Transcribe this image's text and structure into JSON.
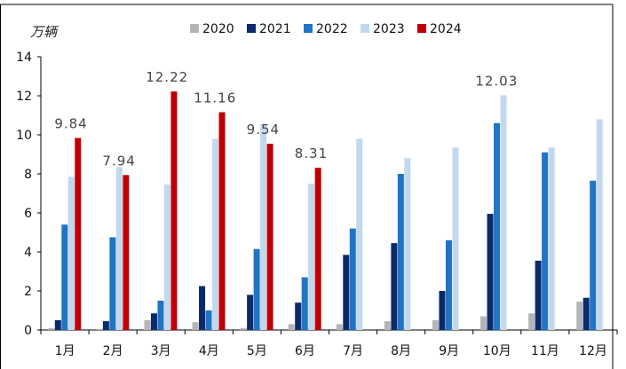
{
  "chart_data": {
    "type": "bar",
    "unit_label": "万辆",
    "categories": [
      "1月",
      "2月",
      "3月",
      "4月",
      "5月",
      "6月",
      "7月",
      "8月",
      "9月",
      "10月",
      "11月",
      "12月"
    ],
    "ylim": [
      0,
      14
    ],
    "yticks": [
      0,
      2,
      4,
      6,
      8,
      10,
      12,
      14
    ],
    "legend_position": "top",
    "grid": false,
    "series": [
      {
        "name": "2020",
        "color": "#b5b5b5",
        "values": [
          0.1,
          0.05,
          0.5,
          0.4,
          0.1,
          0.3,
          0.3,
          0.45,
          0.5,
          0.7,
          0.85,
          1.45
        ]
      },
      {
        "name": "2021",
        "color": "#0b2a6b",
        "values": [
          0.5,
          0.45,
          0.85,
          2.25,
          1.8,
          1.4,
          3.85,
          4.45,
          2.0,
          5.95,
          3.55,
          1.65
        ]
      },
      {
        "name": "2022",
        "color": "#1f74c7",
        "values": [
          5.4,
          4.75,
          1.5,
          1.0,
          4.15,
          2.7,
          5.2,
          8.0,
          4.6,
          10.6,
          9.1,
          7.65
        ]
      },
      {
        "name": "2023",
        "color": "#c2d8ee",
        "values": [
          7.85,
          8.35,
          7.45,
          9.8,
          10.55,
          7.5,
          9.8,
          8.8,
          9.35,
          12.03,
          9.35,
          10.8
        ]
      },
      {
        "name": "2024",
        "color": "#c00000",
        "values": [
          9.84,
          7.94,
          12.22,
          11.16,
          9.54,
          8.31,
          null,
          null,
          null,
          null,
          null,
          null
        ]
      }
    ],
    "annotations": [
      {
        "category": "1月",
        "series": "2024",
        "text": "9.84"
      },
      {
        "category": "2月",
        "series": "2024",
        "text": "7.94"
      },
      {
        "category": "3月",
        "series": "2024",
        "text": "12.22"
      },
      {
        "category": "4月",
        "series": "2024",
        "text": "11.16"
      },
      {
        "category": "5月",
        "series": "2024",
        "text": "9.54"
      },
      {
        "category": "6月",
        "series": "2024",
        "text": "8.31"
      },
      {
        "category": "10月",
        "series": "2023",
        "text": "12.03"
      }
    ]
  }
}
